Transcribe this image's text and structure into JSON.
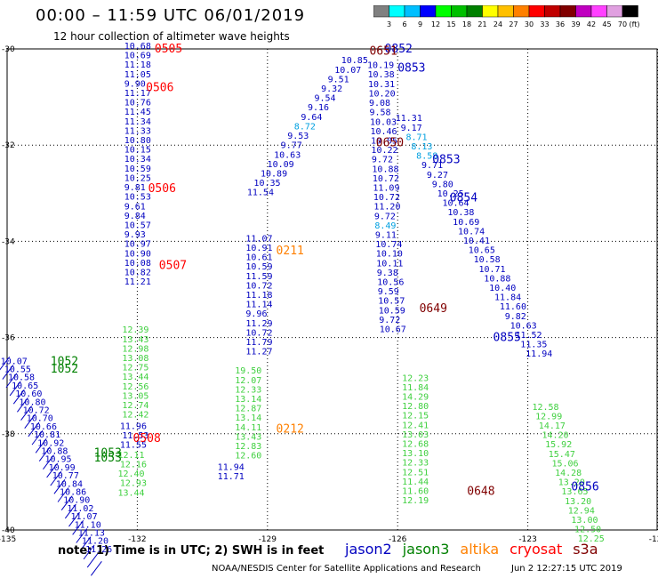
{
  "title": "00:00 – 11:59 UTC 06/01/2019",
  "subtitle": "12 hour collection of altimeter wave heights",
  "colorbar": {
    "ticks": [
      "3",
      "6",
      "9",
      "12",
      "15",
      "18",
      "21",
      "24",
      "27",
      "30",
      "33",
      "36",
      "39",
      "42",
      "45",
      "70"
    ],
    "unit": "(ft)",
    "colors": [
      "#808080",
      "#00ffff",
      "#00bfff",
      "#0000ff",
      "#00ff00",
      "#00c000",
      "#008000",
      "#ffff00",
      "#ffc000",
      "#ff8000",
      "#ff0000",
      "#c00000",
      "#800000",
      "#c000c0",
      "#ff40ff",
      "#e0a0e0",
      "#000000"
    ]
  },
  "map": {
    "lon_ticks": [
      "-135",
      "-132",
      "-129",
      "-126",
      "-123",
      "-120"
    ],
    "lat_ticks": [
      "-30",
      "-32",
      "-34",
      "-36",
      "-38",
      "-40"
    ],
    "gridlines": true
  },
  "tracks": [
    {
      "sat": "jason2",
      "lon": -132.3,
      "lat0": -30.0,
      "step": 0.196,
      "values": [
        "10.68",
        "10.69",
        "11.18",
        "11.05",
        "9.90",
        "11.17",
        "10.76",
        "11.45",
        "11.34",
        "11.33",
        "10.80",
        "10.15",
        "10.34",
        "10.59",
        "10.25",
        "9.81",
        "10.53",
        "9.61",
        "9.84",
        "10.57",
        "9.93",
        "10.97",
        "10.90",
        "10.08",
        "10.82",
        "11.21"
      ]
    },
    {
      "sat": "jason3",
      "lon": -132.35,
      "lat0": -35.9,
      "step": 0.196,
      "values": [
        "12.39",
        "13.43",
        "12.98",
        "13.08",
        "12.75",
        "13.44",
        "12.56",
        "13.05",
        "12.74",
        "12.42"
      ]
    },
    {
      "sat": "jason2",
      "lon": -132.4,
      "lat0": -37.9,
      "step": 0.196,
      "values": [
        "11.96",
        "11.53",
        "11.55"
      ]
    },
    {
      "sat": "jason3",
      "lon": -132.45,
      "lat0": -38.5,
      "step": 0.196,
      "values": [
        "12.11",
        "12.16",
        "12.40",
        "12.93",
        "13.44"
      ]
    },
    {
      "sat": "jason2",
      "lon": -129.5,
      "lat0": -34.0,
      "step": 0.196,
      "values": [
        "11.07",
        "10.91",
        "10.61",
        "10.59",
        "11.59",
        "10.72",
        "11.18",
        "11.14",
        "9.96",
        "11.29",
        "10.72",
        "11.79",
        "11.27"
      ]
    },
    {
      "sat": "jason3",
      "lon": -129.75,
      "lat0": -36.75,
      "step": 0.196,
      "values": [
        "19.50",
        "12.07",
        "12.33",
        "13.14",
        "12.87",
        "13.14",
        "14.11",
        "13.43",
        "12.83",
        "12.60"
      ]
    },
    {
      "sat": "jason2",
      "lon": -130.15,
      "lat0": -38.75,
      "step": 0.196,
      "values": [
        "11.94",
        "11.71"
      ]
    },
    {
      "sat": "jason2",
      "lon": -127.3,
      "lat0": -30.3,
      "step": 0.196,
      "values": [
        "10.85",
        "10.07",
        "9.51",
        "9.32",
        "9.54",
        "9.16",
        "9.64",
        "8.72",
        "9.53",
        "9.77",
        "10.63",
        "10.09",
        "10.89",
        "10.35",
        "11.54"
      ]
    },
    {
      "sat": "jason2",
      "lon": -126.7,
      "lat0": -30.4,
      "step": 0.196,
      "values": [
        "10.19",
        "10.38",
        "10.31",
        "10.20",
        "9.08",
        "9.58",
        "10.03",
        "10.46",
        "10.05",
        "10.22",
        "9.72",
        "10.88",
        "10.72",
        "11.09",
        "10.72",
        "11.20",
        "9.72",
        "8.49",
        "9.11",
        "10.74",
        "10.10",
        "10.11",
        "9.38",
        "10.56",
        "9.59",
        "10.57",
        "10.59",
        "9.72",
        "10.67"
      ]
    },
    {
      "sat": "jason3",
      "lon": -125.9,
      "lat0": -36.9,
      "step": 0.196,
      "values": [
        "12.23",
        "11.84",
        "14.29",
        "12.80",
        "12.15",
        "12.41",
        "13.03",
        "12.68",
        "13.10",
        "12.33",
        "12.51",
        "11.44",
        "11.60",
        "12.19"
      ]
    },
    {
      "sat": "jason2",
      "lon": -126.05,
      "lat0": -31.5,
      "step": 0.196,
      "values": [
        "11.31",
        "9.17",
        "8.71",
        "8.13",
        "8.58",
        "9.71",
        "9.27",
        "9.80",
        "10.25",
        "10.64",
        "10.38",
        "10.69",
        "10.74",
        "10.41",
        "10.65",
        "10.58",
        "10.71",
        "10.88",
        "10.40",
        "11.84",
        "11.60",
        "9.82",
        "10.63",
        "11.52",
        "11.35",
        "11.94"
      ]
    },
    {
      "sat": "jason3",
      "lon": -122.9,
      "lat0": -37.5,
      "step": 0.196,
      "values": [
        "12.58",
        "12.99",
        "14.17",
        "14.20",
        "15.92",
        "15.47",
        "15.06",
        "14.28",
        "13.20",
        "13.65",
        "13.20",
        "12.94",
        "13.00",
        "12.50",
        "12.25"
      ]
    },
    {
      "sat": "jason2",
      "lon": -135.15,
      "lat0": -36.55,
      "step": 0.17,
      "values": [
        "10.07",
        "10.55",
        "10.58",
        "10.65",
        "10.60",
        "10.80",
        "10.72",
        "10.70",
        "10.66",
        "10.81",
        "10.92",
        "10.88",
        "10.95",
        "10.99",
        "10.77",
        "10.84",
        "10.86",
        "10.90",
        "11.02",
        "11.07",
        "11.10",
        "11.13",
        "11.20",
        "11.26"
      ]
    }
  ],
  "pass_labels": [
    {
      "text": "0505",
      "sat": "cryosat",
      "lon": -131.6,
      "lat": -30.0
    },
    {
      "text": "0506",
      "sat": "cryosat",
      "lon": -131.8,
      "lat": -30.8
    },
    {
      "text": "0506",
      "sat": "cryosat",
      "lon": -131.75,
      "lat": -32.9
    },
    {
      "text": "0507",
      "sat": "cryosat",
      "lon": -131.5,
      "lat": -34.5
    },
    {
      "text": "0508",
      "sat": "cryosat",
      "lon": -132.1,
      "lat": -38.1
    },
    {
      "text": "0211",
      "sat": "altika",
      "lon": -128.8,
      "lat": -34.2
    },
    {
      "text": "0212",
      "sat": "altika",
      "lon": -128.8,
      "lat": -37.9
    },
    {
      "text": "0852",
      "sat": "jason2",
      "lon": -126.3,
      "lat": -30.0
    },
    {
      "text": "0651",
      "sat": "s3a",
      "lon": -126.65,
      "lat": -30.05
    },
    {
      "text": "0853",
      "sat": "jason2",
      "lon": -126.0,
      "lat": -30.4
    },
    {
      "text": "0853",
      "sat": "jason2",
      "lon": -125.2,
      "lat": -32.3
    },
    {
      "text": "0854",
      "sat": "jason2",
      "lon": -124.8,
      "lat": -33.1
    },
    {
      "text": "0650",
      "sat": "s3a",
      "lon": -126.5,
      "lat": -31.95
    },
    {
      "text": "0649",
      "sat": "s3a",
      "lon": -125.5,
      "lat": -35.4
    },
    {
      "text": "0855",
      "sat": "jason2",
      "lon": -123.8,
      "lat": -36.0
    },
    {
      "text": "0856",
      "sat": "jason2",
      "lon": -122.0,
      "lat": -39.1
    },
    {
      "text": "0648",
      "sat": "s3a",
      "lon": -124.4,
      "lat": -39.2
    },
    {
      "text": "1052",
      "sat": "jason3",
      "lon": -134.0,
      "lat": -36.5
    },
    {
      "text": "1052",
      "sat": "jason3",
      "lon": -134.0,
      "lat": -36.65
    },
    {
      "text": "1053",
      "sat": "jason3",
      "lon": -133.0,
      "lat": -38.4
    },
    {
      "text": "1053",
      "sat": "jason3",
      "lon": -133.0,
      "lat": -38.5
    }
  ],
  "satellite_colors": {
    "jason2": "#0000c0",
    "jason3": "#008000",
    "altika": "#ff8000",
    "cryosat": "#ff0000",
    "s3a": "#800000",
    "jason3_light": "#40d040"
  },
  "note": "note:  1) Time is in UTC;  2) SWH is in feet",
  "legend": [
    {
      "label": "jason2",
      "color": "#0000c0"
    },
    {
      "label": "jason3",
      "color": "#008000"
    },
    {
      "label": "altika",
      "color": "#ff8000"
    },
    {
      "label": "cryosat",
      "color": "#ff0000"
    },
    {
      "label": "s3a",
      "color": "#800000"
    }
  ],
  "footer_left": "NOAA/NESDIS Center for Satellite Applications and Research",
  "footer_right": "Jun  2 12:27:15 UTC 2019"
}
